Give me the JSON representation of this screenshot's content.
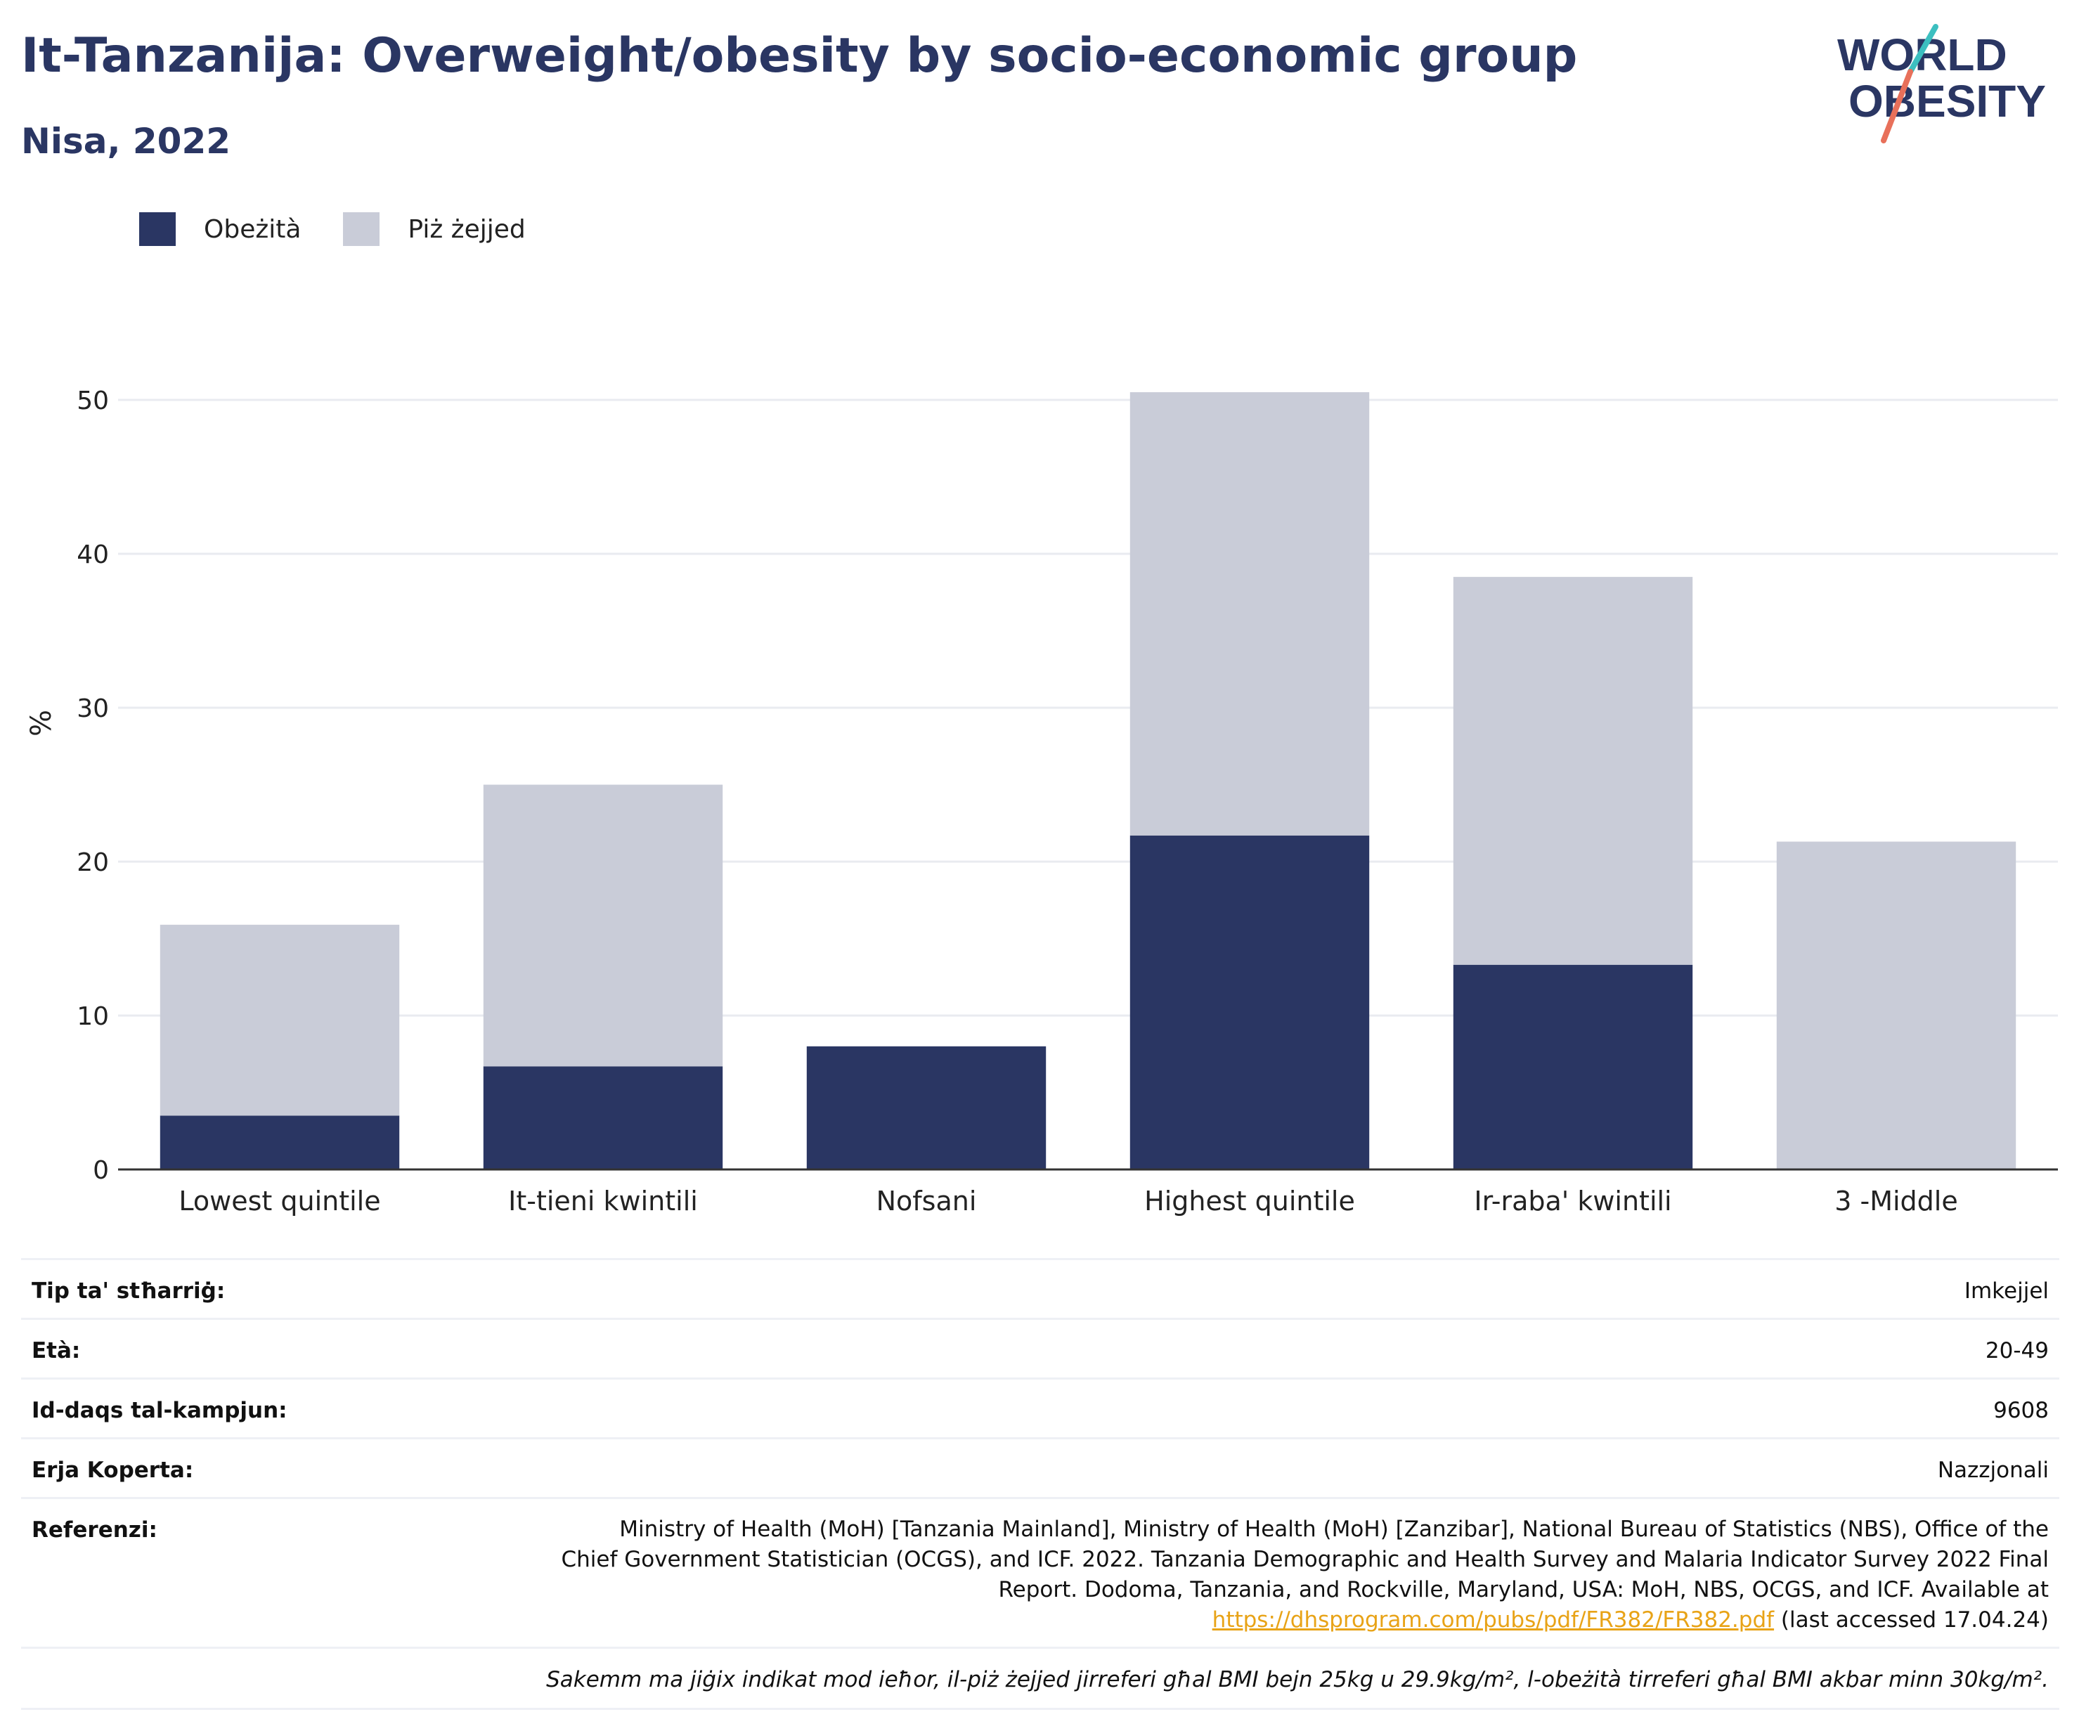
{
  "header": {
    "title": "It-Tanzanija: Overweight/obesity by socio-economic group",
    "subtitle": "Nisa, 2022"
  },
  "logo": {
    "line1": "WORLD",
    "line2": "OBESITY",
    "accent_colors": [
      "#3cbfc0",
      "#e8705a"
    ]
  },
  "legend": {
    "items": [
      {
        "label": "Obeżità",
        "color": "#2a3663"
      },
      {
        "label": "Piż żejjed",
        "color": "#c9ccd8"
      }
    ]
  },
  "chart_data": {
    "type": "bar",
    "stacked": true,
    "categories": [
      "Lowest quintile",
      "It-tieni kwintili",
      "Nofsani",
      "Highest quintile",
      "Ir-raba' kwintili",
      "3 -Middle"
    ],
    "series": [
      {
        "name": "Obeżità",
        "color": "#2a3663",
        "values": [
          3.5,
          6.7,
          8.0,
          21.7,
          13.3,
          0
        ]
      },
      {
        "name": "Piż żejjed",
        "color": "#c9ccd8",
        "values": [
          12.4,
          18.3,
          0,
          28.8,
          25.2,
          21.3
        ]
      }
    ],
    "ylabel": "%",
    "ylim": [
      0,
      54
    ],
    "yticks": [
      0,
      10,
      20,
      30,
      40,
      50
    ],
    "grid": true,
    "legend_position": "top-left"
  },
  "info": {
    "sample_type_label": "Tip ta' stħarriġ:",
    "sample_type_value": "Imkejjel",
    "age_label": "Età:",
    "age_value": "20-49",
    "sample_size_label": "Id-daqs tal-kampjun:",
    "sample_size_value": "9608",
    "coverage_label": "Erja Koperta:",
    "coverage_value": "Nazzjonali",
    "references_label": "Referenzi:",
    "references_text": "Ministry of Health (MoH) [Tanzania Mainland], Ministry of Health (MoH) [Zanzibar], National Bureau of Statistics (NBS), Office of the Chief Government Statistician (OCGS), and ICF. 2022. Tanzania Demographic and Health Survey and Malaria Indicator Survey 2022 Final Report. Dodoma, Tanzania, and Rockville, Maryland, USA: MoH, NBS, OCGS, and ICF. Available at",
    "references_link": "https://dhsprogram.com/pubs/pdf/FR382/FR382.pdf",
    "references_accessed": "(last accessed 17.04.24)",
    "footnote": "Sakemm ma jiġix indikat mod ieħor, il-piż żejjed jirreferi għal BMI bejn 25kg u 29.9kg/m², l-obeżità tirreferi għal BMI akbar minn 30kg/m²."
  }
}
